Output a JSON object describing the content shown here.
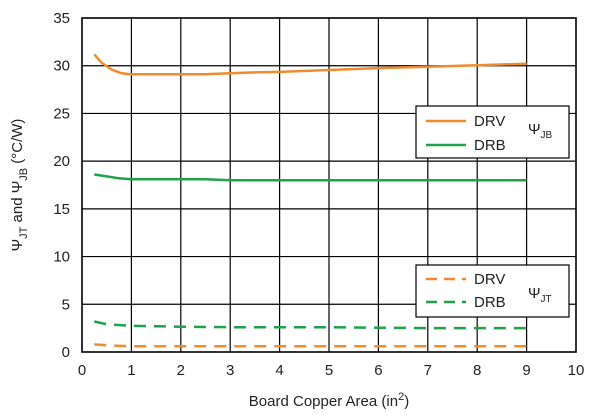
{
  "chart_data": {
    "type": "line",
    "xlabel": "Board Copper Area (in",
    "xlabel_sup": "2",
    "xlabel_close": ")",
    "ylabel_parts": [
      "Ψ",
      "JT",
      " and Ψ",
      "JB",
      " (°C/W)"
    ],
    "xlim": [
      0,
      10
    ],
    "ylim": [
      0,
      35
    ],
    "xticks": [
      "0",
      "1",
      "2",
      "3",
      "4",
      "5",
      "6",
      "7",
      "8",
      "9",
      "10"
    ],
    "yticks": [
      "0",
      "5",
      "10",
      "15",
      "20",
      "25",
      "30",
      "35"
    ],
    "grid": true,
    "legends": [
      {
        "symbol": "Ψ",
        "subscript": "JB",
        "placement": "right-upper",
        "entries": [
          "DRV",
          "DRB"
        ]
      },
      {
        "symbol": "Ψ",
        "subscript": "JT",
        "placement": "right-lower",
        "entries": [
          "DRV",
          "DRB"
        ]
      }
    ],
    "series": [
      {
        "name": "DRV",
        "group": "JB",
        "color": "#f08c2d",
        "dash": "solid",
        "x": [
          0.25,
          0.4,
          0.6,
          0.8,
          1,
          1.5,
          2,
          2.5,
          3,
          3.5,
          4,
          5,
          6,
          7,
          8,
          9
        ],
        "y": [
          31.2,
          30.3,
          29.6,
          29.2,
          29.1,
          29.1,
          29.1,
          29.1,
          29.2,
          29.3,
          29.35,
          29.55,
          29.75,
          29.9,
          30.05,
          30.2
        ]
      },
      {
        "name": "DRB",
        "group": "JB",
        "color": "#1ea34a",
        "dash": "solid",
        "x": [
          0.25,
          0.5,
          0.75,
          1,
          1.5,
          2,
          2.5,
          3,
          4,
          5,
          6,
          7,
          8,
          9
        ],
        "y": [
          18.6,
          18.4,
          18.2,
          18.1,
          18.1,
          18.1,
          18.1,
          18.0,
          18.0,
          18.0,
          18.0,
          18.0,
          18.0,
          18.0
        ]
      },
      {
        "name": "DRV",
        "group": "JT",
        "color": "#f08c2d",
        "dash": "dashed",
        "x": [
          0.25,
          0.5,
          1,
          2,
          3,
          4,
          5,
          6,
          7,
          8,
          9
        ],
        "y": [
          0.8,
          0.7,
          0.6,
          0.6,
          0.6,
          0.6,
          0.6,
          0.6,
          0.6,
          0.6,
          0.6
        ]
      },
      {
        "name": "DRB",
        "group": "JT",
        "color": "#1ea34a",
        "dash": "dashed",
        "x": [
          0.25,
          0.5,
          1,
          2,
          3,
          4,
          5,
          6,
          7,
          8,
          9
        ],
        "y": [
          3.2,
          2.9,
          2.75,
          2.65,
          2.6,
          2.6,
          2.6,
          2.55,
          2.5,
          2.5,
          2.5
        ]
      }
    ]
  }
}
